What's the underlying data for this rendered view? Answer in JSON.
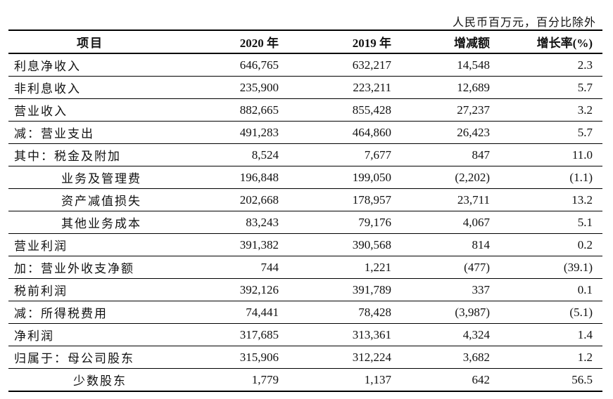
{
  "unit_note": "人民币百万元，百分比除外",
  "headers": {
    "item": "项目",
    "y2020": "2020 年",
    "y2019": "2019 年",
    "change": "增减额",
    "rate": "增长率(%)"
  },
  "rows": [
    {
      "label": "利息净收入",
      "level": 0,
      "y2020": "646,765",
      "y2019": "632,217",
      "change": "14,548",
      "rate": "2.3"
    },
    {
      "label": "非利息收入",
      "level": 0,
      "y2020": "235,900",
      "y2019": "223,211",
      "change": "12,689",
      "rate": "5.7"
    },
    {
      "label": "营业收入",
      "level": 0,
      "y2020": "882,665",
      "y2019": "855,428",
      "change": "27,237",
      "rate": "3.2"
    },
    {
      "label": "减：营业支出",
      "level": 0,
      "y2020": "491,283",
      "y2019": "464,860",
      "change": "26,423",
      "rate": "5.7"
    },
    {
      "label": "其中：税金及附加",
      "level": 0,
      "y2020": "8,524",
      "y2019": "7,677",
      "change": "847",
      "rate": "11.0"
    },
    {
      "label": "业务及管理费",
      "level": 1,
      "y2020": "196,848",
      "y2019": "199,050",
      "change": "(2,202)",
      "rate": "(1.1)"
    },
    {
      "label": "资产减值损失",
      "level": 1,
      "y2020": "202,668",
      "y2019": "178,957",
      "change": "23,711",
      "rate": "13.2"
    },
    {
      "label": "其他业务成本",
      "level": 1,
      "y2020": "83,243",
      "y2019": "79,176",
      "change": "4,067",
      "rate": "5.1"
    },
    {
      "label": "营业利润",
      "level": 0,
      "y2020": "391,382",
      "y2019": "390,568",
      "change": "814",
      "rate": "0.2"
    },
    {
      "label": "加：营业外收支净额",
      "level": 0,
      "y2020": "744",
      "y2019": "1,221",
      "change": "(477)",
      "rate": "(39.1)"
    },
    {
      "label": "税前利润",
      "level": 0,
      "y2020": "392,126",
      "y2019": "391,789",
      "change": "337",
      "rate": "0.1"
    },
    {
      "label": "减：所得税费用",
      "level": 0,
      "y2020": "74,441",
      "y2019": "78,428",
      "change": "(3,987)",
      "rate": "(5.1)"
    },
    {
      "label": "净利润",
      "level": 0,
      "y2020": "317,685",
      "y2019": "313,361",
      "change": "4,324",
      "rate": "1.4"
    },
    {
      "label": "归属于：母公司股东",
      "level": 0,
      "y2020": "315,906",
      "y2019": "312,224",
      "change": "3,682",
      "rate": "1.2"
    },
    {
      "label": "少数股东",
      "level": 2,
      "y2020": "1,779",
      "y2019": "1,137",
      "change": "642",
      "rate": "56.5"
    }
  ]
}
